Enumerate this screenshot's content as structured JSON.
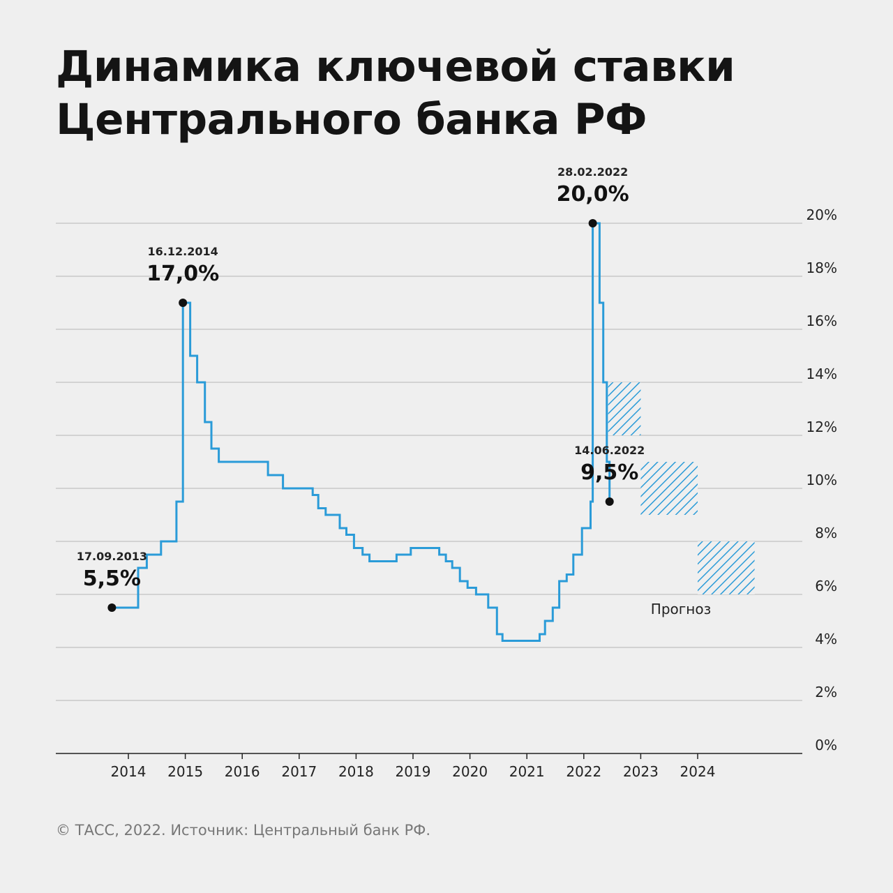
{
  "title_lines": [
    "Динамика ключевой ставки",
    "Центрального банка РФ"
  ],
  "footer": "© ТАСС, 2022. Источник: Центральный банк РФ.",
  "chart_data": {
    "type": "line",
    "step": true,
    "y_unit": "%",
    "ylim": [
      0,
      20
    ],
    "y_ticks": [
      "0%",
      "2%",
      "4%",
      "6%",
      "8%",
      "10%",
      "12%",
      "14%",
      "16%",
      "18%",
      "20%"
    ],
    "x_ticks": [
      "2014",
      "2015",
      "2016",
      "2017",
      "2018",
      "2019",
      "2020",
      "2021",
      "2022",
      "2023",
      "2024"
    ],
    "grid": true,
    "line_color": "#2a9bd8",
    "series": [
      {
        "x": [
          "2013-09-17",
          "2014-03-03",
          "2014-04-28",
          "2014-07-28",
          "2014-11-05",
          "2014-12-16",
          "2015-02-02",
          "2015-03-16",
          "2015-05-05",
          "2015-06-16",
          "2015-08-03",
          "2016-06-14",
          "2016-09-19",
          "2017-03-27",
          "2017-05-02",
          "2017-06-19",
          "2017-09-18",
          "2017-10-30",
          "2017-12-18",
          "2018-02-12",
          "2018-03-26",
          "2018-09-17",
          "2018-12-17",
          "2019-06-17",
          "2019-07-29",
          "2019-09-09",
          "2019-10-28",
          "2019-12-16",
          "2020-02-10",
          "2020-04-27",
          "2020-06-22",
          "2020-07-27",
          "2021-03-22",
          "2021-04-26",
          "2021-06-15",
          "2021-07-26",
          "2021-09-13",
          "2021-10-25",
          "2021-12-20",
          "2022-02-14",
          "2022-02-28",
          "2022-04-11",
          "2022-05-04",
          "2022-05-27",
          "2022-06-14"
        ],
        "y": [
          5.5,
          7.0,
          7.5,
          8.0,
          9.5,
          17.0,
          15.0,
          14.0,
          12.5,
          11.5,
          11.0,
          10.5,
          10.0,
          9.75,
          9.25,
          9.0,
          8.5,
          8.25,
          7.75,
          7.5,
          7.25,
          7.5,
          7.75,
          7.5,
          7.25,
          7.0,
          6.5,
          6.25,
          6.0,
          5.5,
          4.5,
          4.25,
          4.5,
          5.0,
          5.5,
          6.5,
          6.75,
          7.5,
          8.5,
          9.5,
          20.0,
          17.0,
          14.0,
          11.0,
          9.5
        ]
      }
    ],
    "annotations": [
      {
        "date": "17.09.2013",
        "value": "5,5%",
        "x": "2013-09-17",
        "y": 5.5
      },
      {
        "date": "16.12.2014",
        "value": "17,0%",
        "x": "2014-12-16",
        "y": 17.0
      },
      {
        "date": "28.02.2022",
        "value": "20,0%",
        "x": "2022-02-28",
        "y": 20.0
      },
      {
        "date": "14.06.2022",
        "value": "9,5%",
        "x": "2022-06-14",
        "y": 9.5
      }
    ],
    "forecast": {
      "label": "Прогноз",
      "ranges": [
        {
          "period": "2022",
          "low": 12.0,
          "high": 14.0
        },
        {
          "period": "2023",
          "low": 9.0,
          "high": 11.0
        },
        {
          "period": "2024",
          "low": 6.0,
          "high": 8.0
        }
      ]
    }
  }
}
